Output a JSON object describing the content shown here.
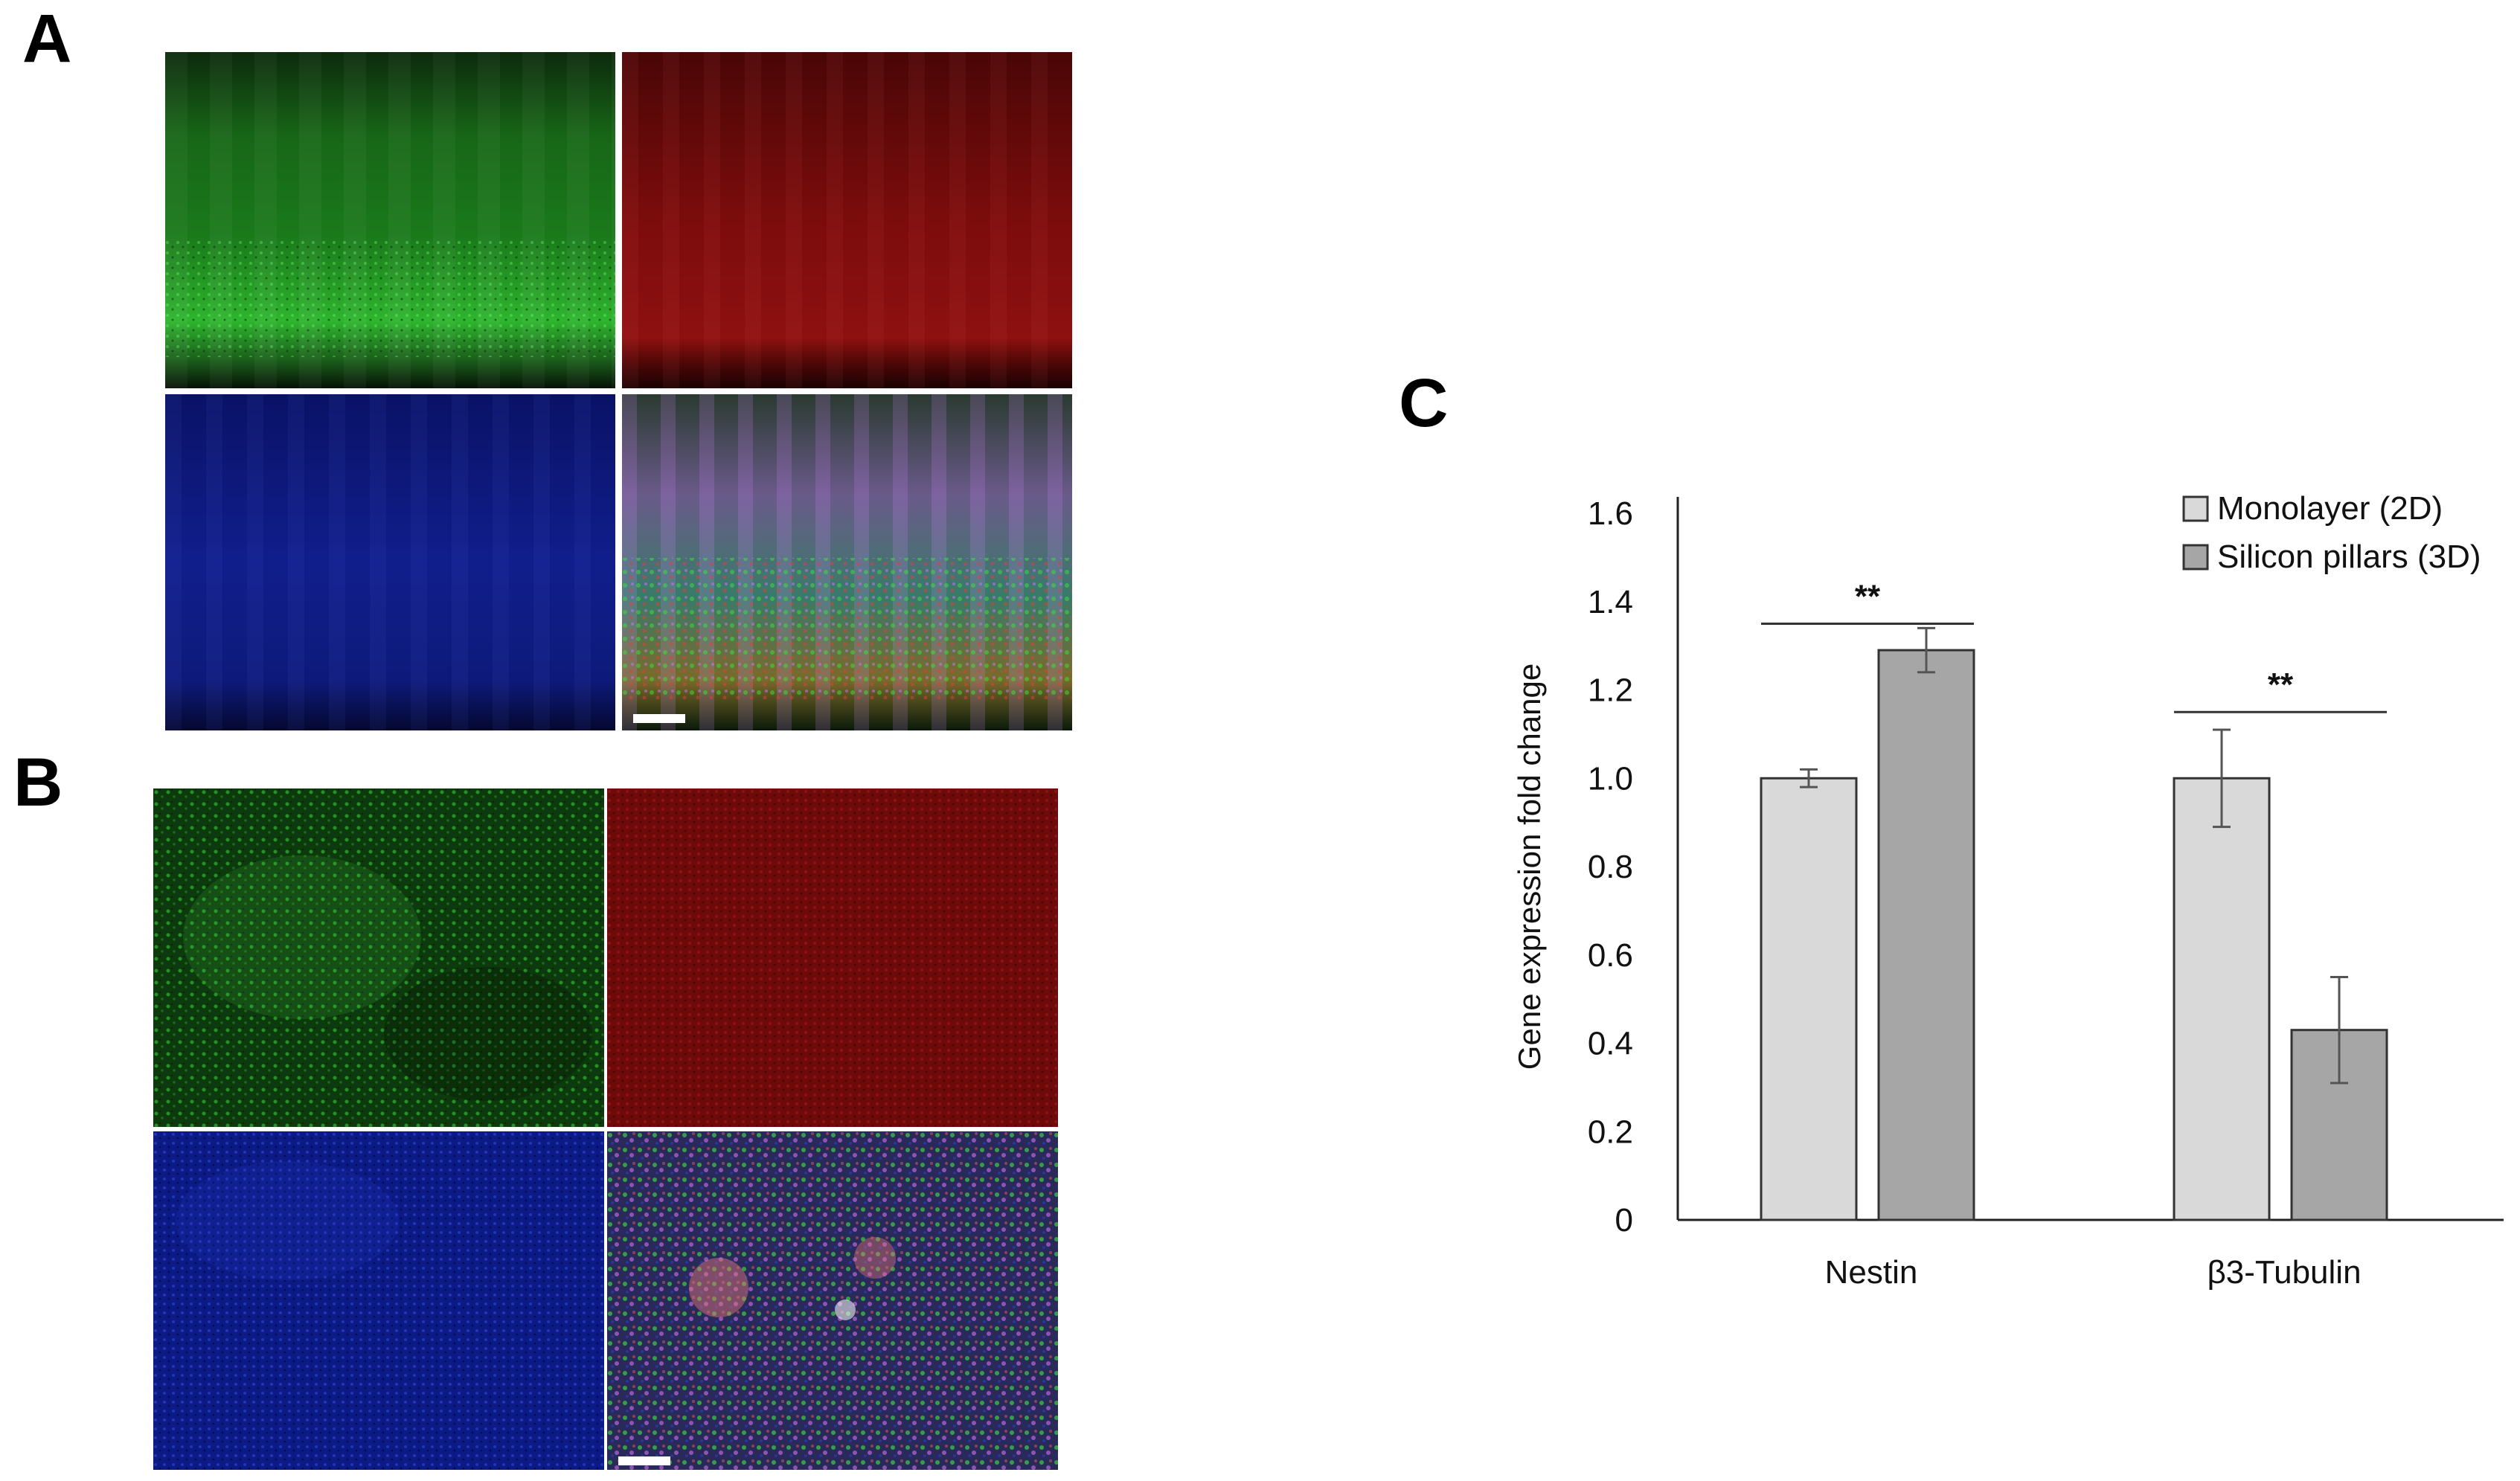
{
  "panels": {
    "a_label": "A",
    "b_label": "B",
    "c_label": "C"
  },
  "colors": {
    "green_channel": "#1f8a1f",
    "red_channel": "#8a0f0f",
    "blue_channel": "#101e8c",
    "bar_monolayer": "#d9d9d9",
    "bar_pillars": "#a6a6a6",
    "bar_outline": "#333333"
  },
  "chart_data": {
    "type": "bar",
    "categories": [
      "Nestin",
      "β3-Tubulin"
    ],
    "series": [
      {
        "name": "Monolayer (2D)",
        "values": [
          1.0,
          1.0
        ],
        "errors": [
          0.02,
          0.11
        ]
      },
      {
        "name": "Silicon pillars (3D)",
        "values": [
          1.29,
          0.43
        ],
        "errors": [
          0.05,
          0.12
        ]
      }
    ],
    "ylabel": "Gene expression fold change",
    "xlabel": "",
    "ylim": [
      0,
      1.6
    ],
    "yticks": [
      "0",
      "0.2",
      "0.4",
      "0.6",
      "0.8",
      "1.0",
      "1.2",
      "1.4",
      "1.6"
    ],
    "significance": [
      {
        "category": "Nestin",
        "label": "**",
        "y": 1.35
      },
      {
        "category": "β3-Tubulin",
        "label": "**",
        "y": 1.15
      }
    ],
    "legend_position": "top-right",
    "grid": false
  }
}
